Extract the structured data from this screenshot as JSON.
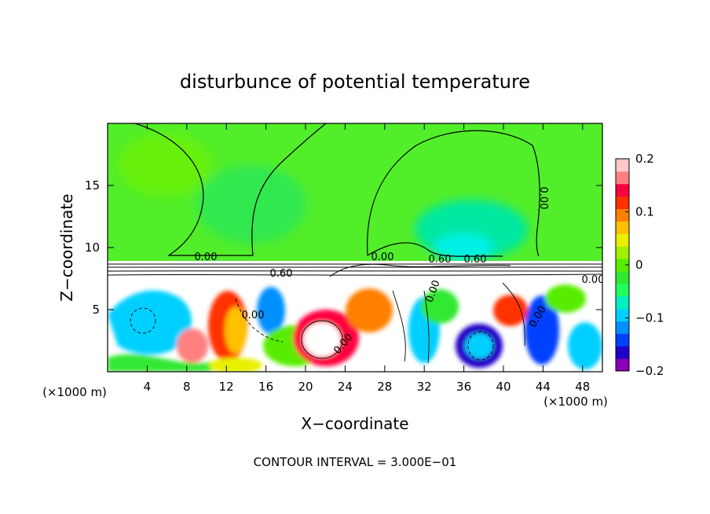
{
  "chart_data": {
    "type": "heatmap",
    "title": "disturbunce of potential temperature",
    "xlabel": "X−coordinate",
    "ylabel": "Z−coordinate",
    "x_unit_left": "(×1000 m)",
    "x_unit_right": "(×1000 m)",
    "xlim": [
      0,
      50
    ],
    "ylim": [
      0,
      20
    ],
    "x_ticks": [
      4,
      8,
      12,
      16,
      20,
      24,
      28,
      32,
      36,
      40,
      44,
      48
    ],
    "x_tick_labels": [
      "4",
      "8",
      "12",
      "16",
      "20",
      "24",
      "28",
      "32",
      "36",
      "40",
      "44",
      "48"
    ],
    "y_ticks": [
      5,
      10,
      15
    ],
    "y_tick_labels": [
      "5",
      "10",
      "15"
    ],
    "colorbar": {
      "range": [
        -0.2,
        0.2
      ],
      "tick_values": [
        0.2,
        0.1,
        0,
        -0.1,
        -0.2
      ],
      "tick_labels": [
        "0.2",
        "0.1",
        "0",
        "−0.1",
        "−0.2"
      ],
      "colors": [
        "#8a00b8",
        "#2200c8",
        "#0040ff",
        "#0090ff",
        "#00d0ff",
        "#00f0c0",
        "#20ff60",
        "#30e830",
        "#58ec00",
        "#a0f000",
        "#e8f000",
        "#ffc000",
        "#ff8000",
        "#ff3000",
        "#ff0040",
        "#ff8080",
        "#ffc8c8"
      ]
    },
    "contour_labels": [
      "0.00",
      "0.00",
      "0.00",
      "0.00",
      "0.60",
      "0.60",
      "0.60",
      "0.00",
      "0.00",
      "0.00",
      "0.00"
    ],
    "footer": "CONTOUR INTERVAL = 3.000E−01"
  }
}
